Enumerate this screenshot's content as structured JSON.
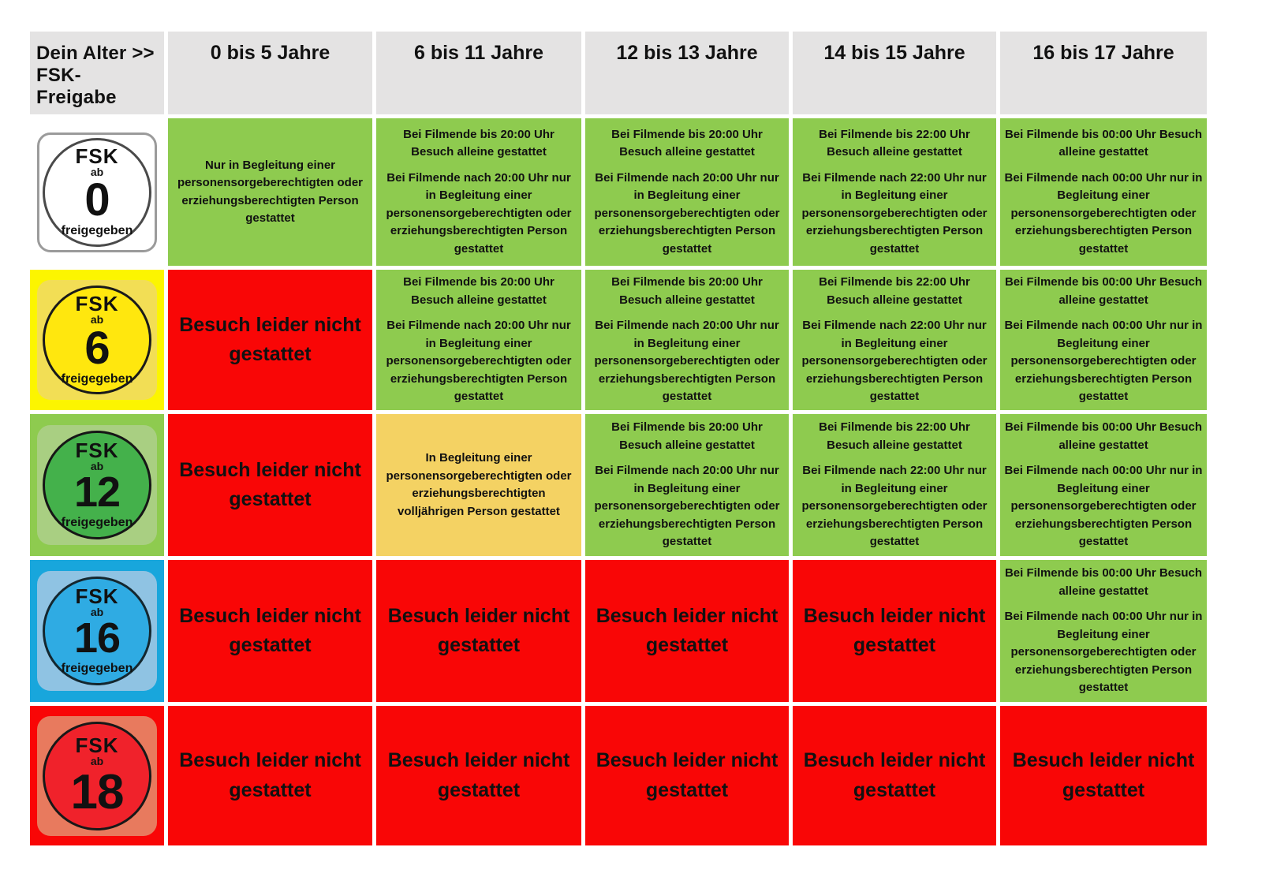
{
  "table": {
    "corner": {
      "line1": "Dein Alter >>",
      "line2": "FSK-Freigabe"
    },
    "age_columns": [
      "0 bis 5 Jahre",
      "6 bis 11 Jahre",
      "12 bis 13 Jahre",
      "14 bis 15 Jahre",
      "16 bis 17 Jahre"
    ],
    "colors": {
      "header_bg": "#e4e3e3",
      "green": "#8ecb4f",
      "red": "#f90606",
      "amber": "#f4d263",
      "text": "#111111"
    },
    "rows": [
      {
        "badge": {
          "fsk": "FSK",
          "ab": "ab",
          "number": "0",
          "footer": "freigegeben",
          "cell_bg": "#ffffff",
          "square_bg": "#ffffff",
          "square_border": "#9b9b9b",
          "circle_bg": "#ffffff",
          "circle_border": "#4a4a4a"
        },
        "cells": [
          {
            "style": "green",
            "paragraphs": [
              "Nur in Begleitung einer personensorgeberechtigten oder erziehungsberechtigten Person gestattet"
            ]
          },
          {
            "style": "green",
            "paragraphs": [
              "Bei Filmende bis 20:00 Uhr Besuch alleine gestattet",
              "Bei Filmende nach 20:00 Uhr nur in Begleitung einer personensorgeberechtigten oder erziehungsberechtigten Person gestattet"
            ]
          },
          {
            "style": "green",
            "paragraphs": [
              "Bei Filmende bis 20:00 Uhr Besuch alleine gestattet",
              "Bei Filmende nach 20:00 Uhr nur in Begleitung einer personensorgeberechtigten oder erziehungsberechtigten Person gestattet"
            ]
          },
          {
            "style": "green",
            "paragraphs": [
              "Bei Filmende bis 22:00 Uhr Besuch alleine gestattet",
              "Bei Filmende nach 22:00 Uhr nur in Begleitung einer personensorgeberechtigten oder erziehungsberechtigten Person gestattet"
            ]
          },
          {
            "style": "green",
            "paragraphs": [
              "Bei Filmende bis 00:00 Uhr Besuch alleine gestattet",
              "Bei Filmende nach 00:00 Uhr nur in Begleitung einer personensorgeberechtigten oder erziehungsberechtigten Person gestattet"
            ]
          }
        ]
      },
      {
        "badge": {
          "fsk": "FSK",
          "ab": "ab",
          "number": "6",
          "footer": "freigegeben",
          "cell_bg": "#fcf500",
          "square_bg": "#f2de55",
          "square_border": "#f2de55",
          "circle_bg": "#ffe70e",
          "circle_border": "#1a1a1a"
        },
        "cells": [
          {
            "style": "red",
            "paragraphs": [
              "Besuch leider nicht gestattet"
            ]
          },
          {
            "style": "green",
            "paragraphs": [
              "Bei Filmende bis 20:00 Uhr Besuch alleine gestattet",
              "Bei Filmende nach 20:00 Uhr nur in Begleitung einer personensorgeberechtigten oder erziehungsberechtigten Person gestattet"
            ]
          },
          {
            "style": "green",
            "paragraphs": [
              "Bei Filmende bis 20:00 Uhr Besuch alleine gestattet",
              "Bei Filmende nach 20:00 Uhr nur in Begleitung einer personensorgeberechtigten oder erziehungsberechtigten Person gestattet"
            ]
          },
          {
            "style": "green",
            "paragraphs": [
              "Bei Filmende bis 22:00 Uhr Besuch alleine gestattet",
              "Bei Filmende nach 22:00 Uhr nur in Begleitung einer personensorgeberechtigten oder erziehungsberechtigten Person gestattet"
            ]
          },
          {
            "style": "green",
            "paragraphs": [
              "Bei Filmende bis 00:00 Uhr Besuch alleine gestattet",
              "Bei Filmende nach 00:00 Uhr nur in Begleitung einer personensorgeberechtigten oder erziehungsberechtigten Person gestattet"
            ]
          }
        ]
      },
      {
        "badge": {
          "fsk": "FSK",
          "ab": "ab",
          "number": "12",
          "footer": "freigegeben",
          "cell_bg": "#8ecb4f",
          "square_bg": "#a9cf82",
          "square_border": "#a9cf82",
          "circle_bg": "#44b14b",
          "circle_border": "#161616"
        },
        "cells": [
          {
            "style": "red",
            "paragraphs": [
              "Besuch leider nicht gestattet"
            ]
          },
          {
            "style": "amber",
            "paragraphs": [
              "In Begleitung einer personensorgeberechtigten oder erziehungsberechtigten volljährigen Person gestattet"
            ]
          },
          {
            "style": "green",
            "paragraphs": [
              "Bei Filmende bis 20:00 Uhr Besuch alleine gestattet",
              "Bei Filmende nach 20:00 Uhr nur in Begleitung einer personensorgeberechtigten oder erziehungsberechtigten Person gestattet"
            ]
          },
          {
            "style": "green",
            "paragraphs": [
              "Bei Filmende bis 22:00 Uhr Besuch alleine gestattet",
              "Bei Filmende nach 22:00 Uhr nur in Begleitung einer personensorgeberechtigten oder erziehungsberechtigten Person gestattet"
            ]
          },
          {
            "style": "green",
            "paragraphs": [
              "Bei Filmende bis 00:00 Uhr Besuch alleine gestattet",
              "Bei Filmende nach 00:00 Uhr nur in Begleitung einer personensorgeberechtigten oder erziehungsberechtigten Person gestattet"
            ]
          }
        ]
      },
      {
        "badge": {
          "fsk": "FSK",
          "ab": "ab",
          "number": "16",
          "footer": "freigegeben",
          "cell_bg": "#18a6dc",
          "square_bg": "#8fc3e3",
          "square_border": "#8fc3e3",
          "circle_bg": "#2fabe3",
          "circle_border": "#14272f"
        },
        "cells": [
          {
            "style": "red",
            "paragraphs": [
              "Besuch leider nicht gestattet"
            ]
          },
          {
            "style": "red",
            "paragraphs": [
              "Besuch leider nicht gestattet"
            ]
          },
          {
            "style": "red",
            "paragraphs": [
              "Besuch leider nicht gestattet"
            ]
          },
          {
            "style": "red",
            "paragraphs": [
              "Besuch leider nicht gestattet"
            ]
          },
          {
            "style": "green",
            "paragraphs": [
              "Bei Filmende bis 00:00 Uhr Besuch alleine gestattet",
              "Bei Filmende nach 00:00 Uhr nur in Begleitung einer personensorgeberechtigten oder erziehungsberechtigten Person gestattet"
            ]
          }
        ]
      },
      {
        "badge": {
          "fsk": "FSK",
          "ab": "ab",
          "number": "18",
          "footer": "",
          "cell_bg": "#f90606",
          "square_bg": "#e87a5e",
          "square_border": "#e87a5e",
          "circle_bg": "#f0222b",
          "circle_border": "#181818"
        },
        "cells": [
          {
            "style": "red",
            "paragraphs": [
              "Besuch leider nicht gestattet"
            ]
          },
          {
            "style": "red",
            "paragraphs": [
              "Besuch leider nicht gestattet"
            ]
          },
          {
            "style": "red",
            "paragraphs": [
              "Besuch leider nicht gestattet"
            ]
          },
          {
            "style": "red",
            "paragraphs": [
              "Besuch leider nicht gestattet"
            ]
          },
          {
            "style": "red",
            "paragraphs": [
              "Besuch leider nicht gestattet"
            ]
          }
        ]
      }
    ]
  }
}
